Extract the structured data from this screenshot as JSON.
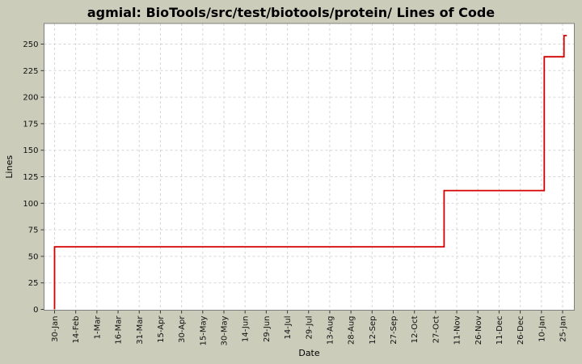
{
  "title": "agmial: BioTools/src/test/biotools/protein/ Lines of Code",
  "colors": {
    "background": "#cbccba",
    "plot_background": "#ffffff",
    "grid": "#d6d6d6",
    "axis_frame": "#7f7f7f",
    "tick_mark": "#3a3a3a",
    "tick_label": "#111111",
    "line": "#d40000",
    "title_text": "#000000"
  },
  "chart_data": {
    "type": "line",
    "style": "step",
    "title": "agmial: BioTools/src/test/biotools/protein/ Lines of Code",
    "xlabel": "Date",
    "ylabel": "Lines",
    "grid": "on",
    "legend": "none",
    "x_tick_labels": [
      "30-Jan",
      "14-Feb",
      "1-Mar",
      "16-Mar",
      "31-Mar",
      "15-Apr",
      "30-Apr",
      "15-May",
      "30-May",
      "14-Jun",
      "29-Jun",
      "14-Jul",
      "29-Jul",
      "13-Aug",
      "28-Aug",
      "12-Sep",
      "27-Sep",
      "12-Oct",
      "27-Oct",
      "11-Nov",
      "26-Nov",
      "11-Dec",
      "26-Dec",
      "10-Jan",
      "25-Jan"
    ],
    "x_tick_interval_days": 15,
    "x_range_days": [
      0,
      360
    ],
    "y_ticks": [
      0,
      25,
      50,
      75,
      100,
      125,
      150,
      175,
      200,
      225,
      250
    ],
    "ylim": [
      0,
      268
    ],
    "series": [
      {
        "name": "Lines of Code",
        "points_days_value": [
          [
            0,
            0
          ],
          [
            0,
            59
          ],
          [
            276,
            59
          ],
          [
            276,
            112
          ],
          [
            347,
            112
          ],
          [
            347,
            238
          ],
          [
            361,
            238
          ],
          [
            361,
            258
          ],
          [
            363,
            258
          ]
        ]
      }
    ]
  }
}
